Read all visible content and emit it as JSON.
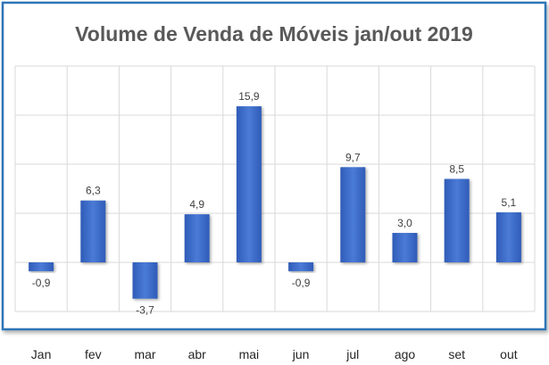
{
  "chart_data": {
    "type": "bar",
    "title": "Volume de Venda de Móveis jan/out 2019",
    "categories": [
      "Jan",
      "fev",
      "mar",
      "abr",
      "mai",
      "jun",
      "jul",
      "ago",
      "set",
      "out"
    ],
    "values": [
      -0.9,
      6.3,
      -3.7,
      4.9,
      15.9,
      -0.9,
      9.7,
      3.0,
      8.5,
      5.1
    ],
    "data_labels": [
      "-0,9",
      "6,3",
      "-3,7",
      "4,9",
      "15,9",
      "-0,9",
      "9,7",
      "3,0",
      "8,5",
      "5,1"
    ],
    "xlabel": "",
    "ylabel": "",
    "ylim": [
      -5,
      20
    ],
    "grid": true,
    "y_tick_labels_visible": false,
    "colors": {
      "bar": "#4472c4",
      "bar_dark": "#2f5cb8",
      "border": "#2e75b6",
      "grid": "#d9d9d9",
      "title": "#595959"
    }
  }
}
